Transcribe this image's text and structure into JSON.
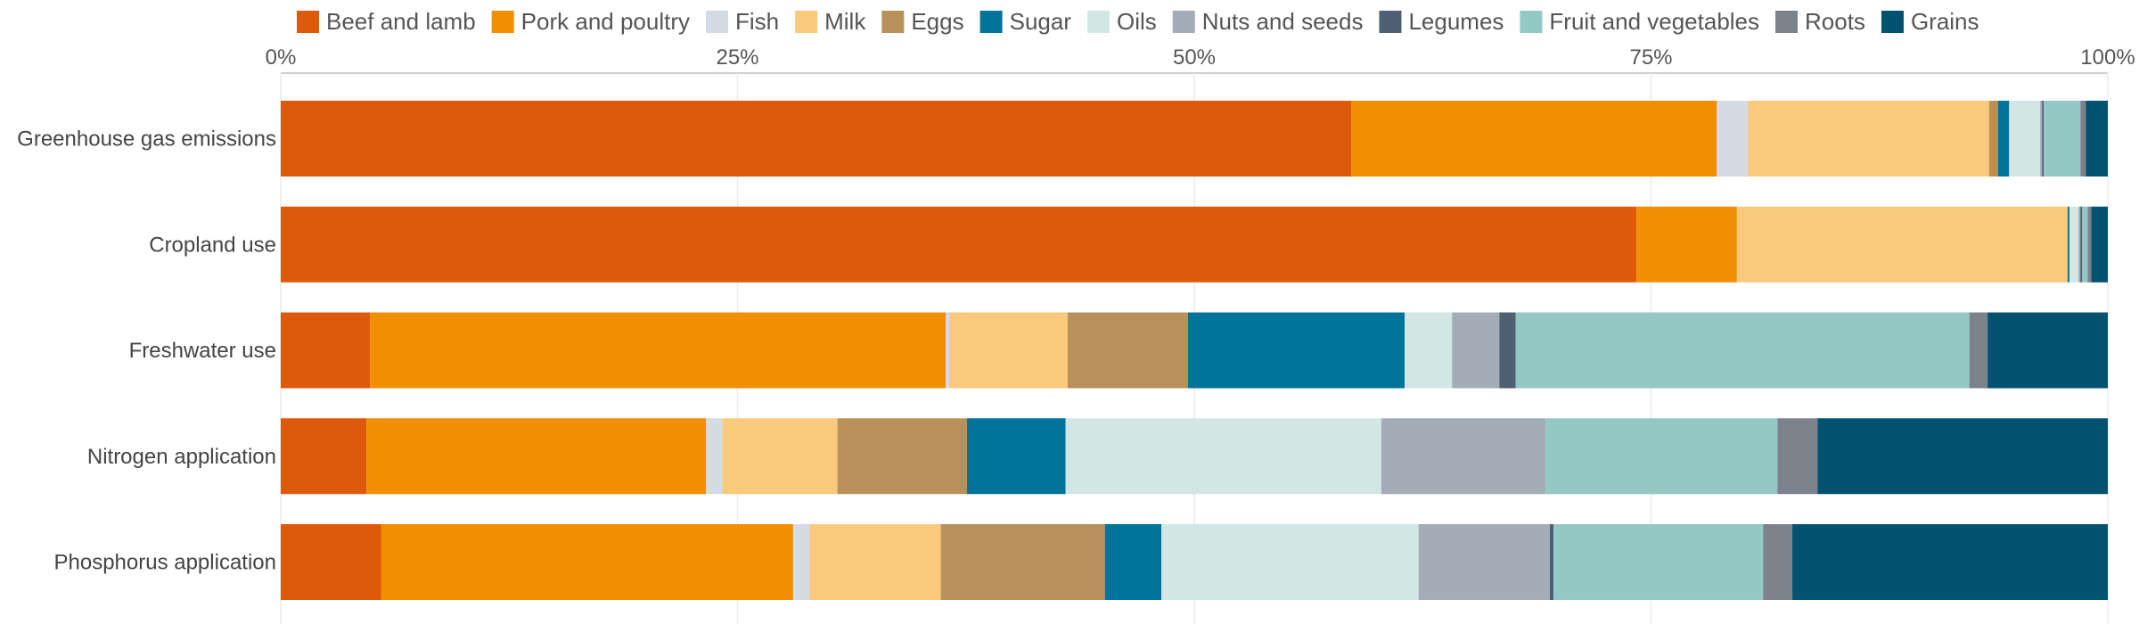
{
  "chart_data": {
    "type": "bar",
    "orientation": "horizontal",
    "stacked": true,
    "normalized": true,
    "title": "",
    "xlabel": "",
    "ylabel": "",
    "xlim": [
      0,
      100
    ],
    "x_ticks": [
      {
        "value": 0,
        "label": "0%"
      },
      {
        "value": 25,
        "label": "25%"
      },
      {
        "value": 50,
        "label": "50%"
      },
      {
        "value": 75,
        "label": "75%"
      },
      {
        "value": 100,
        "label": "100%"
      }
    ],
    "x_axis_position": "top",
    "grid": true,
    "legend_position": "top",
    "categories": [
      "Greenhouse gas emissions",
      "Cropland use",
      "Freshwater use",
      "Nitrogen application",
      "Phosphorus application"
    ],
    "series": [
      {
        "name": "Beef and lamb",
        "color": "#dd5a0b",
        "values": [
          58.6,
          74.2,
          4.9,
          4.7,
          5.5
        ]
      },
      {
        "name": "Pork and poultry",
        "color": "#f18f00",
        "values": [
          20.0,
          5.5,
          31.6,
          18.6,
          22.6
        ]
      },
      {
        "name": "Fish",
        "color": "#d4dbe4",
        "values": [
          1.7,
          0.0,
          0.2,
          0.9,
          0.9
        ]
      },
      {
        "name": "Milk",
        "color": "#f9c97c",
        "values": [
          13.2,
          18.1,
          6.5,
          6.3,
          7.2
        ]
      },
      {
        "name": "Eggs",
        "color": "#b8905a",
        "values": [
          0.5,
          0.0,
          6.6,
          7.1,
          9.0
        ]
      },
      {
        "name": "Sugar",
        "color": "#00739b",
        "values": [
          0.6,
          0.1,
          11.9,
          5.4,
          3.1
        ]
      },
      {
        "name": "Oils",
        "color": "#d2e7e4",
        "values": [
          1.7,
          0.5,
          2.6,
          17.3,
          14.1
        ]
      },
      {
        "name": "Nuts and seeds",
        "color": "#a2adb8",
        "values": [
          0.1,
          0.1,
          2.6,
          9.0,
          7.2
        ]
      },
      {
        "name": "Legumes",
        "color": "#4e6173",
        "values": [
          0.1,
          0.1,
          0.9,
          0.0,
          0.2
        ]
      },
      {
        "name": "Fruit and vegetables",
        "color": "#94c8c5",
        "values": [
          2.0,
          0.3,
          24.9,
          12.7,
          11.5
        ]
      },
      {
        "name": "Roots",
        "color": "#7b828b",
        "values": [
          0.3,
          0.2,
          1.0,
          2.2,
          1.6
        ]
      },
      {
        "name": "Grains",
        "color": "#025270",
        "values": [
          1.2,
          0.9,
          6.6,
          15.9,
          17.3
        ]
      }
    ]
  }
}
